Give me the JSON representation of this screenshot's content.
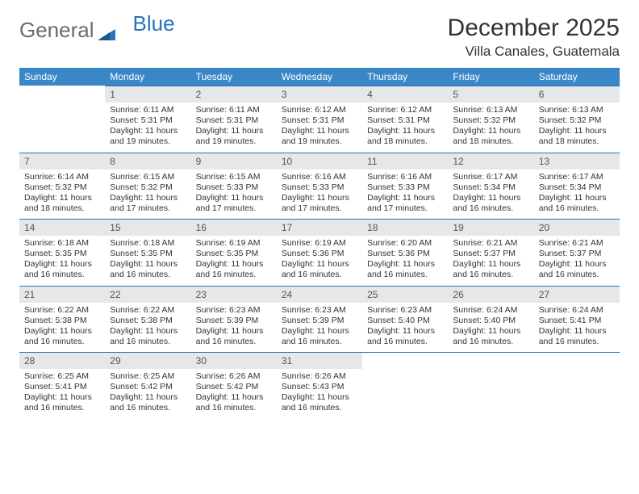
{
  "logo": {
    "text1": "General",
    "text2": "Blue"
  },
  "title": {
    "month": "December 2025",
    "location": "Villa Canales, Guatemala"
  },
  "colors": {
    "header_bg": "#3a87c8",
    "header_text": "#ffffff",
    "rule": "#2a73b8",
    "daynum_bg": "#e5e7e9",
    "daynum_text": "#555555",
    "body_text": "#333333",
    "logo_blue": "#2a73b8",
    "logo_gray": "#6b6b6b",
    "background": "#ffffff"
  },
  "typography": {
    "month_fontsize": 30,
    "location_fontsize": 17,
    "dayhead_fontsize": 12,
    "daynum_fontsize": 12,
    "daytext_fontsize": 10.5
  },
  "calendar": {
    "type": "table",
    "columns": [
      "Sunday",
      "Monday",
      "Tuesday",
      "Wednesday",
      "Thursday",
      "Friday",
      "Saturday"
    ],
    "weeks": [
      [
        {
          "n": "",
          "sunrise": "",
          "sunset": "",
          "daylight": ""
        },
        {
          "n": "1",
          "sunrise": "6:11 AM",
          "sunset": "5:31 PM",
          "daylight": "11 hours and 19 minutes."
        },
        {
          "n": "2",
          "sunrise": "6:11 AM",
          "sunset": "5:31 PM",
          "daylight": "11 hours and 19 minutes."
        },
        {
          "n": "3",
          "sunrise": "6:12 AM",
          "sunset": "5:31 PM",
          "daylight": "11 hours and 19 minutes."
        },
        {
          "n": "4",
          "sunrise": "6:12 AM",
          "sunset": "5:31 PM",
          "daylight": "11 hours and 18 minutes."
        },
        {
          "n": "5",
          "sunrise": "6:13 AM",
          "sunset": "5:32 PM",
          "daylight": "11 hours and 18 minutes."
        },
        {
          "n": "6",
          "sunrise": "6:13 AM",
          "sunset": "5:32 PM",
          "daylight": "11 hours and 18 minutes."
        }
      ],
      [
        {
          "n": "7",
          "sunrise": "6:14 AM",
          "sunset": "5:32 PM",
          "daylight": "11 hours and 18 minutes."
        },
        {
          "n": "8",
          "sunrise": "6:15 AM",
          "sunset": "5:32 PM",
          "daylight": "11 hours and 17 minutes."
        },
        {
          "n": "9",
          "sunrise": "6:15 AM",
          "sunset": "5:33 PM",
          "daylight": "11 hours and 17 minutes."
        },
        {
          "n": "10",
          "sunrise": "6:16 AM",
          "sunset": "5:33 PM",
          "daylight": "11 hours and 17 minutes."
        },
        {
          "n": "11",
          "sunrise": "6:16 AM",
          "sunset": "5:33 PM",
          "daylight": "11 hours and 17 minutes."
        },
        {
          "n": "12",
          "sunrise": "6:17 AM",
          "sunset": "5:34 PM",
          "daylight": "11 hours and 16 minutes."
        },
        {
          "n": "13",
          "sunrise": "6:17 AM",
          "sunset": "5:34 PM",
          "daylight": "11 hours and 16 minutes."
        }
      ],
      [
        {
          "n": "14",
          "sunrise": "6:18 AM",
          "sunset": "5:35 PM",
          "daylight": "11 hours and 16 minutes."
        },
        {
          "n": "15",
          "sunrise": "6:18 AM",
          "sunset": "5:35 PM",
          "daylight": "11 hours and 16 minutes."
        },
        {
          "n": "16",
          "sunrise": "6:19 AM",
          "sunset": "5:35 PM",
          "daylight": "11 hours and 16 minutes."
        },
        {
          "n": "17",
          "sunrise": "6:19 AM",
          "sunset": "5:36 PM",
          "daylight": "11 hours and 16 minutes."
        },
        {
          "n": "18",
          "sunrise": "6:20 AM",
          "sunset": "5:36 PM",
          "daylight": "11 hours and 16 minutes."
        },
        {
          "n": "19",
          "sunrise": "6:21 AM",
          "sunset": "5:37 PM",
          "daylight": "11 hours and 16 minutes."
        },
        {
          "n": "20",
          "sunrise": "6:21 AM",
          "sunset": "5:37 PM",
          "daylight": "11 hours and 16 minutes."
        }
      ],
      [
        {
          "n": "21",
          "sunrise": "6:22 AM",
          "sunset": "5:38 PM",
          "daylight": "11 hours and 16 minutes."
        },
        {
          "n": "22",
          "sunrise": "6:22 AM",
          "sunset": "5:38 PM",
          "daylight": "11 hours and 16 minutes."
        },
        {
          "n": "23",
          "sunrise": "6:23 AM",
          "sunset": "5:39 PM",
          "daylight": "11 hours and 16 minutes."
        },
        {
          "n": "24",
          "sunrise": "6:23 AM",
          "sunset": "5:39 PM",
          "daylight": "11 hours and 16 minutes."
        },
        {
          "n": "25",
          "sunrise": "6:23 AM",
          "sunset": "5:40 PM",
          "daylight": "11 hours and 16 minutes."
        },
        {
          "n": "26",
          "sunrise": "6:24 AM",
          "sunset": "5:40 PM",
          "daylight": "11 hours and 16 minutes."
        },
        {
          "n": "27",
          "sunrise": "6:24 AM",
          "sunset": "5:41 PM",
          "daylight": "11 hours and 16 minutes."
        }
      ],
      [
        {
          "n": "28",
          "sunrise": "6:25 AM",
          "sunset": "5:41 PM",
          "daylight": "11 hours and 16 minutes."
        },
        {
          "n": "29",
          "sunrise": "6:25 AM",
          "sunset": "5:42 PM",
          "daylight": "11 hours and 16 minutes."
        },
        {
          "n": "30",
          "sunrise": "6:26 AM",
          "sunset": "5:42 PM",
          "daylight": "11 hours and 16 minutes."
        },
        {
          "n": "31",
          "sunrise": "6:26 AM",
          "sunset": "5:43 PM",
          "daylight": "11 hours and 16 minutes."
        },
        {
          "n": "",
          "sunrise": "",
          "sunset": "",
          "daylight": ""
        },
        {
          "n": "",
          "sunrise": "",
          "sunset": "",
          "daylight": ""
        },
        {
          "n": "",
          "sunrise": "",
          "sunset": "",
          "daylight": ""
        }
      ]
    ],
    "labels": {
      "sunrise": "Sunrise: ",
      "sunset": "Sunset: ",
      "daylight": "Daylight: "
    }
  }
}
